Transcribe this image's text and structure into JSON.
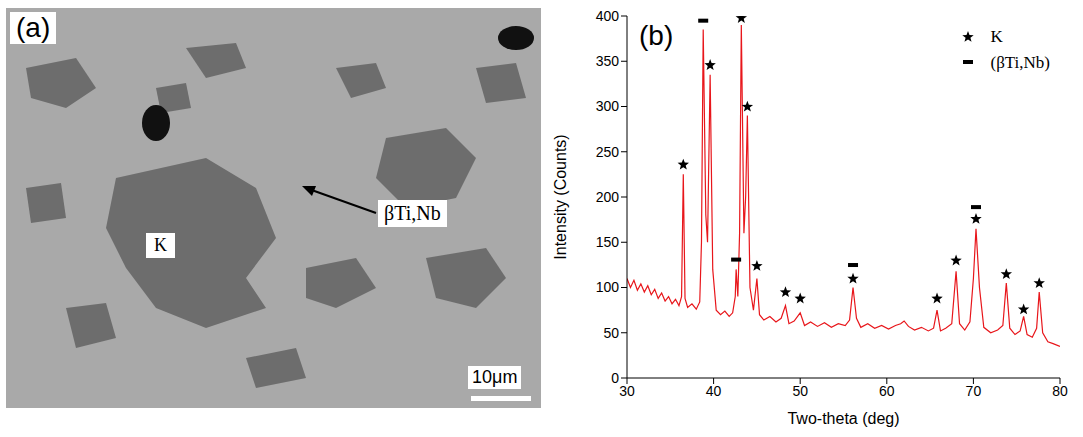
{
  "image": {
    "label": "(a)",
    "annotations": [
      "K",
      "βTi,Nb"
    ],
    "scale_bar": "10μm"
  },
  "chart_data": {
    "label": "(b)",
    "type": "line",
    "x_label": "Two-theta (deg)",
    "y_label": "Intensity (Counts)",
    "xlim": [
      30,
      80
    ],
    "xticks": [
      30,
      40,
      50,
      60,
      70,
      80
    ],
    "ylim": [
      0,
      400
    ],
    "yticks": [
      0,
      50,
      100,
      150,
      200,
      250,
      300,
      350,
      400
    ],
    "color": "#e8161b",
    "legend": "top-right",
    "x": [
      30,
      30.4,
      30.8,
      31.2,
      31.6,
      32,
      32.4,
      32.8,
      33.2,
      33.6,
      34,
      34.4,
      34.8,
      35.2,
      35.6,
      36,
      36.3,
      36.5,
      36.7,
      37,
      37.5,
      38,
      38.4,
      38.6,
      38.8,
      39.1,
      39.3,
      39.6,
      39.9,
      40.3,
      40.8,
      41.3,
      41.8,
      42.2,
      42.5,
      42.6,
      42.8,
      43.0,
      43.2,
      43.5,
      43.7,
      43.9,
      44.2,
      44.6,
      45.0,
      45.3,
      45.8,
      46.5,
      47.2,
      47.8,
      48.3,
      48.7,
      49.3,
      50.0,
      50.5,
      51.2,
      52,
      52.8,
      53.6,
      54.4,
      55.2,
      55.7,
      56.1,
      56.5,
      57,
      57.8,
      58.6,
      59.4,
      60.2,
      61,
      61.6,
      62,
      62.5,
      63.2,
      64,
      64.8,
      65.4,
      65.8,
      66.2,
      66.8,
      67.5,
      68.0,
      68.4,
      69,
      69.6,
      70.0,
      70.3,
      70.7,
      71.2,
      72,
      72.8,
      73.4,
      73.8,
      74.2,
      74.8,
      75.4,
      75.8,
      76.2,
      76.8,
      77.3,
      77.6,
      78,
      78.6,
      79.2,
      80
    ],
    "values": [
      110,
      100,
      108,
      97,
      104,
      95,
      102,
      92,
      98,
      88,
      94,
      85,
      90,
      82,
      87,
      80,
      90,
      225,
      88,
      78,
      82,
      76,
      84,
      150,
      385,
      180,
      150,
      335,
      120,
      75,
      70,
      74,
      68,
      72,
      90,
      120,
      90,
      160,
      390,
      160,
      200,
      290,
      100,
      75,
      110,
      70,
      64,
      68,
      62,
      66,
      80,
      60,
      63,
      72,
      58,
      62,
      57,
      61,
      56,
      60,
      58,
      64,
      100,
      66,
      56,
      60,
      55,
      58,
      54,
      58,
      60,
      63,
      57,
      53,
      56,
      52,
      55,
      75,
      52,
      55,
      60,
      118,
      60,
      53,
      62,
      110,
      165,
      100,
      56,
      50,
      53,
      58,
      105,
      55,
      48,
      52,
      68,
      48,
      45,
      55,
      95,
      50,
      40,
      38,
      35
    ],
    "markers": [
      {
        "name": "K",
        "marker": "star",
        "color": "#000000",
        "x": [
          36.5,
          39.6,
          43.2,
          43.9,
          45.0,
          48.3,
          50.0,
          56.1,
          65.8,
          68.0,
          70.3,
          73.8,
          75.8,
          77.6
        ],
        "values": [
          228,
          338,
          390,
          292,
          116,
          87,
          80,
          102,
          80,
          122,
          168,
          107,
          68,
          97
        ]
      },
      {
        "name": "(βTi,Nb)",
        "marker": "dash",
        "color": "#000000",
        "x": [
          38.8,
          42.6,
          56.1,
          70.3
        ],
        "values": [
          386,
          122,
          116,
          180
        ]
      }
    ]
  }
}
